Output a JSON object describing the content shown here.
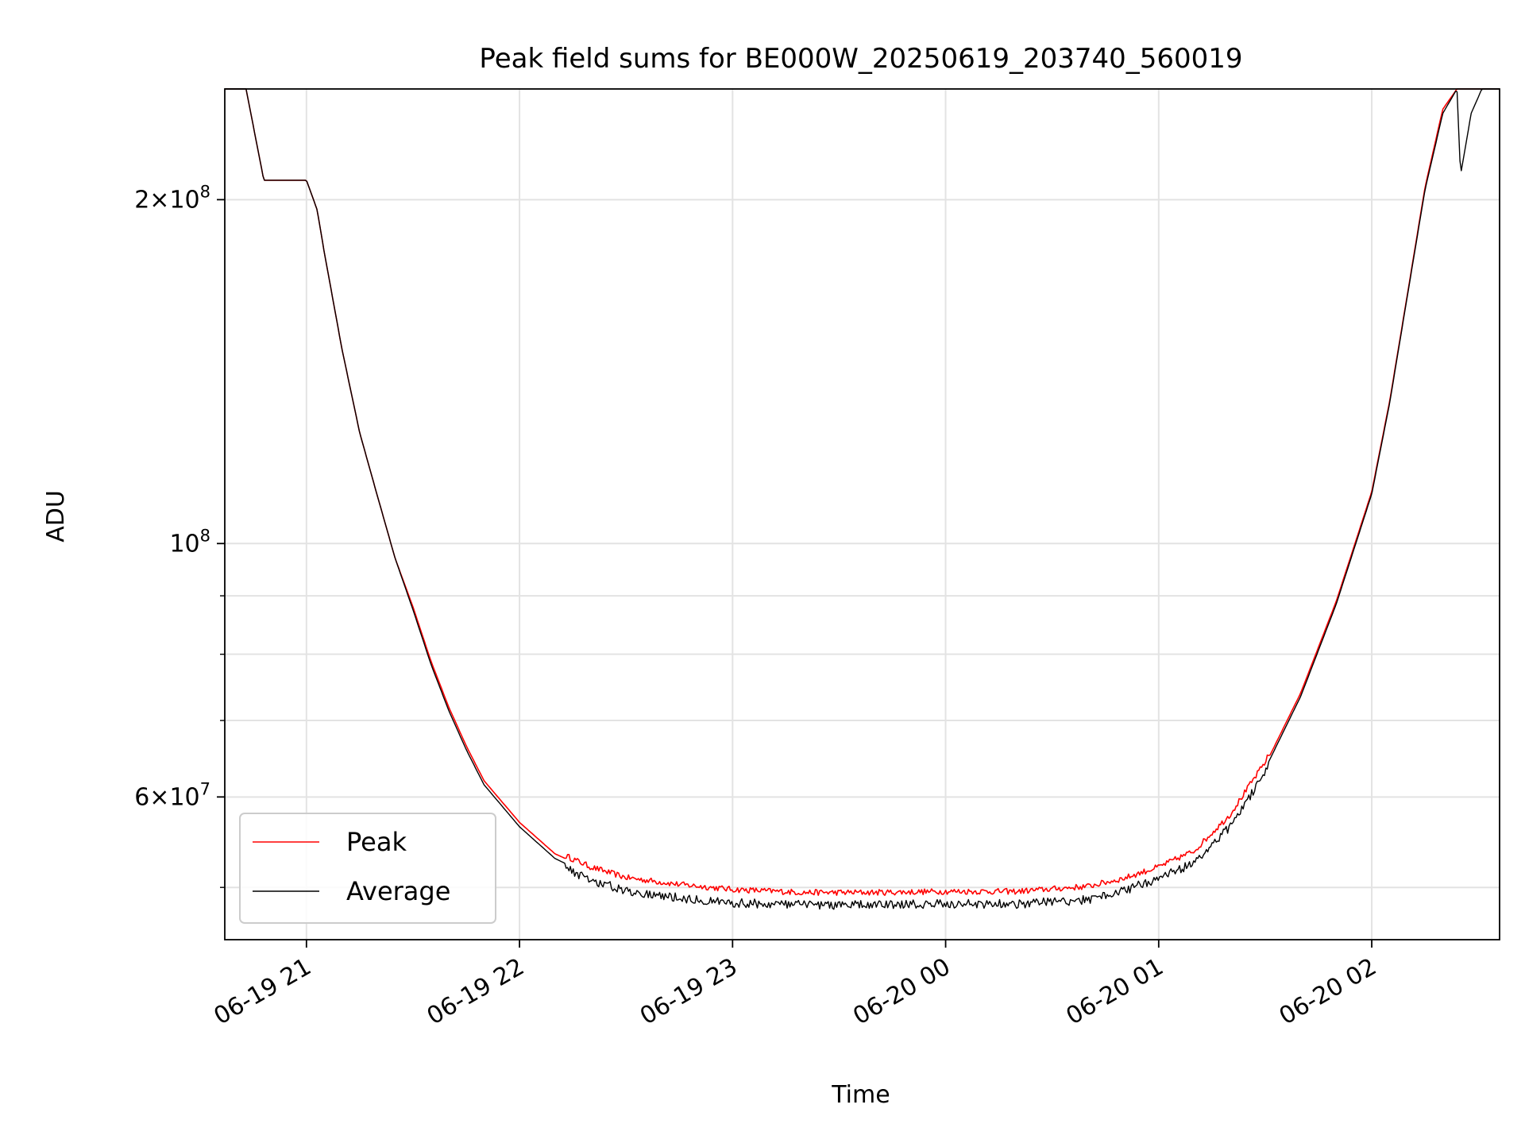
{
  "chart_data": {
    "type": "line",
    "title": "Peak field sums for BE000W_20250619_203740_560019",
    "xlabel": "Time",
    "ylabel": "ADU",
    "y_scale": "log",
    "ylim": [
      45000000,
      250000000
    ],
    "xlim": [
      "2025-06-19 20:37",
      "2025-06-20 02:36"
    ],
    "x_ticks": [
      {
        "value": "2025-06-19 21:00",
        "label": "06-19 21"
      },
      {
        "value": "2025-06-19 22:00",
        "label": "06-19 22"
      },
      {
        "value": "2025-06-19 23:00",
        "label": "06-19 23"
      },
      {
        "value": "2025-06-20 00:00",
        "label": "06-20 00"
      },
      {
        "value": "2025-06-20 01:00",
        "label": "06-20 01"
      },
      {
        "value": "2025-06-20 02:00",
        "label": "06-20 02"
      }
    ],
    "y_major_ticks": [
      {
        "value": 200000000,
        "mantissa": "2",
        "exponent": "8"
      },
      {
        "value": 100000000,
        "mantissa": "",
        "exponent": "8"
      },
      {
        "value": 60000000,
        "mantissa": "6",
        "exponent": "7"
      }
    ],
    "y_minor_ticks": [
      50000000,
      70000000,
      80000000,
      90000000
    ],
    "grid": true,
    "legend": {
      "placement": "lower-left"
    },
    "series": [
      {
        "name": "Peak",
        "color": "#ff0000",
        "x": [
          "2025-06-19 20:37",
          "2025-06-19 20:43",
          "2025-06-19 20:48",
          "2025-06-19 20:53",
          "2025-06-19 21:00",
          "2025-06-19 21:03",
          "2025-06-19 21:05",
          "2025-06-19 21:10",
          "2025-06-19 21:15",
          "2025-06-19 21:20",
          "2025-06-19 21:25",
          "2025-06-19 21:30",
          "2025-06-19 21:35",
          "2025-06-19 21:40",
          "2025-06-19 21:45",
          "2025-06-19 21:50",
          "2025-06-19 22:00",
          "2025-06-19 22:10",
          "2025-06-19 22:20",
          "2025-06-19 22:30",
          "2025-06-19 22:45",
          "2025-06-19 23:00",
          "2025-06-19 23:20",
          "2025-06-19 23:40",
          "2025-06-20 00:00",
          "2025-06-20 00:20",
          "2025-06-20 00:40",
          "2025-06-20 00:50",
          "2025-06-20 01:00",
          "2025-06-20 01:10",
          "2025-06-20 01:20",
          "2025-06-20 01:30",
          "2025-06-20 01:40",
          "2025-06-20 01:50",
          "2025-06-20 02:00",
          "2025-06-20 02:05",
          "2025-06-20 02:10",
          "2025-06-20 02:15",
          "2025-06-20 02:20",
          "2025-06-20 02:24",
          "2025-06-20 02:25",
          "2025-06-20 02:28",
          "2025-06-20 02:31",
          "2025-06-20 02:36"
        ],
        "y": [
          250000000,
          250000000,
          208000000,
          208000000,
          208000000,
          196000000,
          180000000,
          148000000,
          125000000,
          110000000,
          97000000,
          88000000,
          79000000,
          72000000,
          66500000,
          62000000,
          57000000,
          53500000,
          51800000,
          50700000,
          50000000,
          49500000,
          49200000,
          49200000,
          49300000,
          49300000,
          49800000,
          50600000,
          51800000,
          53500000,
          57500000,
          64000000,
          74000000,
          89000000,
          111000000,
          133000000,
          165000000,
          205000000,
          240000000,
          250000000,
          250000000,
          250000000,
          250000000,
          250000000
        ]
      },
      {
        "name": "Average",
        "color": "#000000",
        "x": [
          "2025-06-19 20:37",
          "2025-06-19 20:43",
          "2025-06-19 20:48",
          "2025-06-19 20:53",
          "2025-06-19 21:00",
          "2025-06-19 21:03",
          "2025-06-19 21:05",
          "2025-06-19 21:10",
          "2025-06-19 21:15",
          "2025-06-19 21:20",
          "2025-06-19 21:25",
          "2025-06-19 21:30",
          "2025-06-19 21:35",
          "2025-06-19 21:40",
          "2025-06-19 21:45",
          "2025-06-19 21:50",
          "2025-06-19 22:00",
          "2025-06-19 22:10",
          "2025-06-19 22:20",
          "2025-06-19 22:30",
          "2025-06-19 22:45",
          "2025-06-19 23:00",
          "2025-06-19 23:20",
          "2025-06-19 23:40",
          "2025-06-20 00:00",
          "2025-06-20 00:20",
          "2025-06-20 00:40",
          "2025-06-20 00:50",
          "2025-06-20 01:00",
          "2025-06-20 01:10",
          "2025-06-20 01:20",
          "2025-06-20 01:30",
          "2025-06-20 01:40",
          "2025-06-20 01:50",
          "2025-06-20 02:00",
          "2025-06-20 02:05",
          "2025-06-20 02:10",
          "2025-06-20 02:15",
          "2025-06-20 02:20",
          "2025-06-20 02:24",
          "2025-06-20 02:25",
          "2025-06-20 02:28",
          "2025-06-20 02:31",
          "2025-06-20 02:36"
        ],
        "y": [
          250000000,
          250000000,
          208000000,
          208000000,
          208000000,
          196000000,
          180000000,
          148000000,
          125000000,
          110000000,
          97000000,
          87500000,
          78500000,
          71500000,
          66000000,
          61500000,
          56500000,
          53000000,
          51200000,
          50100000,
          49400000,
          48900000,
          48700000,
          48700000,
          48800000,
          48800000,
          49200000,
          50100000,
          51400000,
          53000000,
          57000000,
          63500000,
          73500000,
          88500000,
          110500000,
          132500000,
          164500000,
          204000000,
          238000000,
          250000000,
          210000000,
          238000000,
          250000000,
          250000000
        ]
      }
    ]
  }
}
